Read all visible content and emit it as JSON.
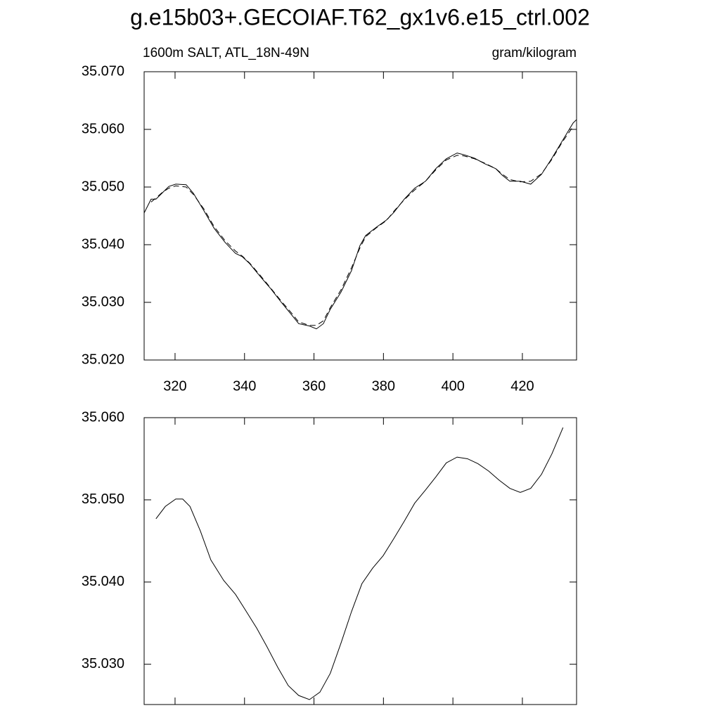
{
  "title": "g.e15b03+.GECOIAF.T62_gx1v6.e15_ctrl.002",
  "chart_data": [
    {
      "type": "line",
      "subtitle_left": "1600m SALT, ATL_18N-49N",
      "subtitle_right": "gram/kilogram",
      "xlim": [
        311.1,
        435.6
      ],
      "xticks": [
        320,
        340,
        360,
        380,
        400,
        420
      ],
      "xtick_labels": true,
      "ylim": [
        35.02,
        35.07
      ],
      "yticks": [
        {
          "value": 35.02,
          "label": "35.020"
        },
        {
          "value": 35.03,
          "label": "35.030"
        },
        {
          "value": 35.04,
          "label": "35.040"
        },
        {
          "value": 35.05,
          "label": "35.050"
        },
        {
          "value": 35.06,
          "label": "35.060"
        },
        {
          "value": 35.07,
          "label": "35.070"
        }
      ],
      "x": [
        311.1,
        313.1,
        314.5,
        316.2,
        318.2,
        320.2,
        323.2,
        325.3,
        328.3,
        331.3,
        334.4,
        337.4,
        339.4,
        341.5,
        344.5,
        347.5,
        350.6,
        353.6,
        355.6,
        358.7,
        360.7,
        362.7,
        364.7,
        367.8,
        370.8,
        373.2,
        374.9,
        377.9,
        380.9,
        383.0,
        386.0,
        389.0,
        392.1,
        395.1,
        398.1,
        401.2,
        403.2,
        406.2,
        409.3,
        412.3,
        414.3,
        416.4,
        419.4,
        422.4,
        425.5,
        428.5,
        431.5,
        434.6,
        435.6
      ],
      "series": [
        {
          "color": "#000000",
          "dash": "solid",
          "values": [
            35.0455,
            35.0479,
            35.0479,
            35.0489,
            35.0501,
            35.0505,
            35.0504,
            35.0489,
            35.0459,
            35.0428,
            35.0404,
            35.0385,
            35.0379,
            35.0367,
            35.0345,
            35.0324,
            35.03,
            35.0278,
            35.0263,
            35.0259,
            35.0254,
            35.0263,
            35.0288,
            35.0318,
            35.0355,
            35.0398,
            35.0416,
            35.043,
            35.0443,
            35.0456,
            35.0479,
            35.0498,
            35.051,
            35.0532,
            35.0549,
            35.0559,
            35.0556,
            35.055,
            35.054,
            35.0532,
            35.052,
            35.051,
            35.051,
            35.0505,
            35.0522,
            35.055,
            35.058,
            35.0611,
            35.0617
          ]
        },
        {
          "color": "#000000",
          "dash": "dashed",
          "values": [
            null,
            35.0474,
            35.0481,
            35.049,
            35.0498,
            35.0502,
            35.05,
            35.0487,
            35.0462,
            35.0431,
            35.0407,
            35.0389,
            35.038,
            35.0368,
            35.0347,
            35.0325,
            35.0302,
            35.0281,
            35.0266,
            35.026,
            35.026,
            35.0268,
            35.0291,
            35.0322,
            35.036,
            35.0394,
            35.0414,
            35.0429,
            35.0442,
            35.0458,
            35.0478,
            35.0495,
            35.051,
            35.053,
            35.0547,
            35.0555,
            35.0554,
            35.0549,
            35.0541,
            35.0532,
            35.0522,
            35.0513,
            35.0509,
            35.051,
            35.0523,
            35.0548,
            35.0578,
            35.0605,
            null
          ]
        }
      ]
    },
    {
      "type": "line",
      "xlim": [
        311.1,
        435.6
      ],
      "xticks": [
        320,
        340,
        360,
        380,
        400,
        420
      ],
      "xtick_labels": false,
      "ylim": [
        35.0251,
        35.06
      ],
      "yticks": [
        {
          "value": 35.03,
          "label": "35.030"
        },
        {
          "value": 35.04,
          "label": "35.040"
        },
        {
          "value": 35.05,
          "label": "35.050"
        },
        {
          "value": 35.06,
          "label": "35.060"
        }
      ],
      "x": [
        314.5,
        317.2,
        320.2,
        322.2,
        324.3,
        327.3,
        330.3,
        334.0,
        337.4,
        340.4,
        343.5,
        346.5,
        349.6,
        352.6,
        355.6,
        358.7,
        361.7,
        364.7,
        367.8,
        370.8,
        373.8,
        376.9,
        379.9,
        383.0,
        386.0,
        389.0,
        392.1,
        395.1,
        398.1,
        401.2,
        404.2,
        407.2,
        410.3,
        413.3,
        416.4,
        419.4,
        422.4,
        425.5,
        428.5,
        431.7
      ],
      "series": [
        {
          "color": "#000000",
          "dash": "solid",
          "values": [
            35.0477,
            35.0492,
            35.0501,
            35.0501,
            35.0492,
            35.0462,
            35.0427,
            35.0402,
            35.0385,
            35.0365,
            35.0344,
            35.0321,
            35.0296,
            35.0274,
            35.0262,
            35.0257,
            35.0266,
            35.0289,
            35.0326,
            35.0364,
            35.0398,
            35.0417,
            35.0432,
            35.0453,
            35.0474,
            35.0496,
            35.0512,
            35.0528,
            35.0545,
            35.0552,
            35.055,
            35.0544,
            35.0535,
            35.0524,
            35.0514,
            35.0509,
            35.0514,
            35.0531,
            35.0556,
            35.0588
          ]
        }
      ]
    }
  ]
}
